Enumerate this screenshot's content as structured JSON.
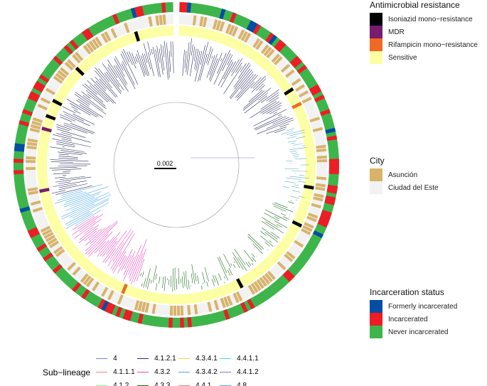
{
  "tree": {
    "scale_bar_label": "0.002"
  },
  "legends": {
    "resistance": {
      "title": "Antimicrobial resistance",
      "items": [
        {
          "label": "Isoniazid mono−resistance",
          "color": "#000004"
        },
        {
          "label": "MDR",
          "color": "#781c6d"
        },
        {
          "label": "Rifampicin mono−resistance",
          "color": "#ed6925"
        },
        {
          "label": "Sensitive",
          "color": "#fcffa4"
        }
      ]
    },
    "city": {
      "title": "City",
      "items": [
        {
          "label": "Asunción",
          "color": "#d8b36a"
        },
        {
          "label": "Ciudad del Este",
          "color": "#f2f2f2"
        }
      ]
    },
    "incarceration": {
      "title": "Incarceration status",
      "items": [
        {
          "label": "Formerly incarcerated",
          "color": "#034ea2"
        },
        {
          "label": "Incarcerated",
          "color": "#ee1c25"
        },
        {
          "label": "Never incarcerated",
          "color": "#3db54a"
        }
      ]
    },
    "sublineage": {
      "title": "Sub−lineage",
      "items": [
        {
          "label": "4",
          "color": "#7b7bf0"
        },
        {
          "label": "4.1.1.1",
          "color": "#f08080"
        },
        {
          "label": "4.1.2",
          "color": "#90ee90"
        },
        {
          "label": "4.1.2.1",
          "color": "#2f2f5f"
        },
        {
          "label": "4.3.2",
          "color": "#ee44bb"
        },
        {
          "label": "4.3.3",
          "color": "#1f6b1f"
        },
        {
          "label": "4.3.4.1",
          "color": "#f0d060"
        },
        {
          "label": "4.3.4.2",
          "color": "#4aa8e8"
        },
        {
          "label": "4.4.1",
          "color": "#d89090"
        },
        {
          "label": "4.4.1.1",
          "color": "#40e0d0"
        },
        {
          "label": "4.4.1.2",
          "color": "#9370db"
        },
        {
          "label": "4.8",
          "color": "#5fb0c0"
        }
      ]
    }
  }
}
